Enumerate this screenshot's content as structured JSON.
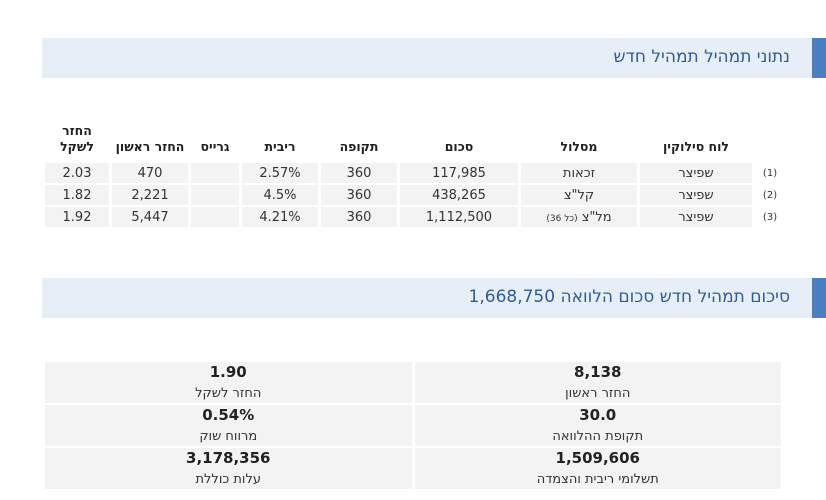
{
  "header": {
    "title": "נתוני תמהיל תמהיל חדש"
  },
  "table": {
    "columns": {
      "schedule": "לוח סילוקין",
      "track": "מסלול",
      "amount": "סכום",
      "period": "תקופה",
      "rate": "ריבית",
      "grace": "גרייס",
      "first_payment": "החזר ראשון",
      "per_shekel": "החזר לשקל"
    },
    "rows": [
      {
        "index": "(1)",
        "schedule": "שפיצר",
        "track": "זכאות",
        "amount": "117,985",
        "period": "360",
        "rate": "2.57%",
        "first_payment": "470",
        "per_shekel": "2.03"
      },
      {
        "index": "(2)",
        "schedule": "שפיצר",
        "track": "קל\"צ",
        "amount": "438,265",
        "period": "360",
        "rate": "4.5%",
        "first_payment": "2,221",
        "per_shekel": "1.82"
      },
      {
        "index": "(3)",
        "schedule": "שפיצר",
        "track": "מל\"צ",
        "track_note": "(כל 36)",
        "amount": "1,112,500",
        "period": "360",
        "rate": "4.21%",
        "first_payment": "5,447",
        "per_shekel": "1.92"
      }
    ]
  },
  "summary": {
    "title": "סיכום תמהיל חדש סכום הלוואה",
    "amount": "1,668,750",
    "items": [
      {
        "value": "8,138",
        "label": "החזר ראשון"
      },
      {
        "value": "1.90",
        "label": "החזר לשקל"
      },
      {
        "value": "30.0",
        "label": "תקופת ההלוואה"
      },
      {
        "value": "0.54%",
        "label": "מרווח שוק"
      },
      {
        "value": "1,509,606",
        "label": "תשלומי ריבית והצמדה"
      },
      {
        "value": "3,178,356",
        "label": "עלות כוללת"
      }
    ]
  }
}
